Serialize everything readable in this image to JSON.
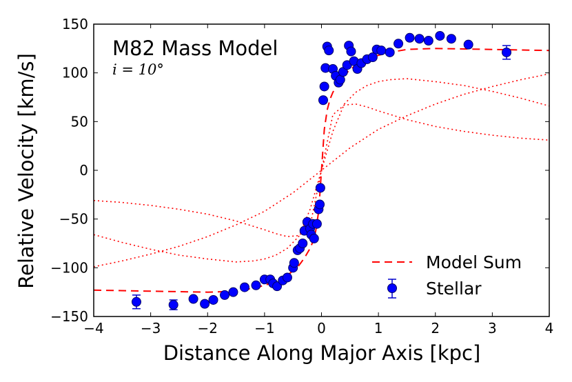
{
  "chart_data": {
    "type": "scatter",
    "title": "M82 Mass Model",
    "annotation": "i = 10°",
    "xlabel": "Distance Along Major Axis [kpc]",
    "ylabel": "Relative Velocity [km/s]",
    "xlim": [
      -4,
      4
    ],
    "ylim": [
      -150,
      150
    ],
    "xticks": [
      -4,
      -3,
      -2,
      -1,
      0,
      1,
      2,
      3,
      4
    ],
    "yticks": [
      -150,
      -100,
      -50,
      0,
      50,
      100,
      150
    ],
    "xtick_labels": [
      "−4",
      "−3",
      "−2",
      "−1",
      "0",
      "1",
      "2",
      "3",
      "4"
    ],
    "ytick_labels": [
      "−150",
      "−100",
      "−50",
      "0",
      "50",
      "100",
      "150"
    ],
    "legend": {
      "location": "lower-right",
      "entries": [
        {
          "label": "Model Sum",
          "style": "dashed-line",
          "color": "#ff0000"
        },
        {
          "label": "Stellar",
          "style": "marker-errorbar",
          "color": "#0000ff"
        }
      ]
    },
    "colors": {
      "stellar": "#0000ff",
      "model": "#ff0000",
      "errorbar": "#0000cc"
    },
    "series": [
      {
        "name": "Stellar",
        "kind": "points",
        "points": [
          {
            "x": -3.25,
            "y": -135,
            "err": 7
          },
          {
            "x": -2.6,
            "y": -138,
            "err": 5
          },
          {
            "x": -2.25,
            "y": -132
          },
          {
            "x": -2.05,
            "y": -137
          },
          {
            "x": -1.9,
            "y": -133
          },
          {
            "x": -1.7,
            "y": -128
          },
          {
            "x": -1.55,
            "y": -125
          },
          {
            "x": -1.35,
            "y": -120
          },
          {
            "x": -1.15,
            "y": -118
          },
          {
            "x": -1.0,
            "y": -112
          },
          {
            "x": -0.9,
            "y": -112
          },
          {
            "x": -0.85,
            "y": -116
          },
          {
            "x": -0.78,
            "y": -119
          },
          {
            "x": -0.68,
            "y": -113
          },
          {
            "x": -0.6,
            "y": -110
          },
          {
            "x": -0.5,
            "y": -100
          },
          {
            "x": -0.48,
            "y": -95
          },
          {
            "x": -0.42,
            "y": -82
          },
          {
            "x": -0.38,
            "y": -80
          },
          {
            "x": -0.33,
            "y": -75
          },
          {
            "x": -0.3,
            "y": -62
          },
          {
            "x": -0.25,
            "y": -53
          },
          {
            "x": -0.2,
            "y": -60
          },
          {
            "x": -0.15,
            "y": -55
          },
          {
            "x": -0.18,
            "y": -66
          },
          {
            "x": -0.13,
            "y": -70
          },
          {
            "x": -0.08,
            "y": -55
          },
          {
            "x": -0.05,
            "y": -40
          },
          {
            "x": -0.03,
            "y": -35
          },
          {
            "x": -0.02,
            "y": -18
          },
          {
            "x": 0.03,
            "y": 72
          },
          {
            "x": 0.05,
            "y": 86
          },
          {
            "x": 0.07,
            "y": 105
          },
          {
            "x": 0.1,
            "y": 127
          },
          {
            "x": 0.13,
            "y": 123
          },
          {
            "x": 0.2,
            "y": 104
          },
          {
            "x": 0.25,
            "y": 97
          },
          {
            "x": 0.3,
            "y": 90
          },
          {
            "x": 0.33,
            "y": 93
          },
          {
            "x": 0.38,
            "y": 101
          },
          {
            "x": 0.45,
            "y": 108
          },
          {
            "x": 0.48,
            "y": 128
          },
          {
            "x": 0.52,
            "y": 122
          },
          {
            "x": 0.57,
            "y": 112
          },
          {
            "x": 0.63,
            "y": 104
          },
          {
            "x": 0.7,
            "y": 110
          },
          {
            "x": 0.8,
            "y": 114
          },
          {
            "x": 0.9,
            "y": 116
          },
          {
            "x": 0.97,
            "y": 124
          },
          {
            "x": 1.05,
            "y": 123
          },
          {
            "x": 1.2,
            "y": 121
          },
          {
            "x": 1.35,
            "y": 130
          },
          {
            "x": 1.55,
            "y": 136
          },
          {
            "x": 1.72,
            "y": 135
          },
          {
            "x": 1.88,
            "y": 133
          },
          {
            "x": 2.08,
            "y": 138
          },
          {
            "x": 2.28,
            "y": 135
          },
          {
            "x": 2.58,
            "y": 129
          },
          {
            "x": 3.25,
            "y": 121,
            "err": 7
          }
        ]
      },
      {
        "name": "Model Sum",
        "kind": "dashed",
        "x": [
          -4,
          -3.5,
          -3,
          -2.5,
          -2,
          -1.5,
          -1.2,
          -1,
          -0.8,
          -0.6,
          -0.4,
          -0.3,
          -0.2,
          -0.15,
          -0.1,
          -0.05,
          0,
          0.05,
          0.1,
          0.15,
          0.2,
          0.3,
          0.4,
          0.6,
          0.8,
          1,
          1.2,
          1.5,
          2,
          2.5,
          3,
          3.5,
          4
        ],
        "y": [
          -123,
          -123.5,
          -124,
          -124.5,
          -125,
          -124,
          -121,
          -118,
          -114,
          -108,
          -98,
          -90,
          -80,
          -73,
          -62,
          -42,
          0,
          42,
          62,
          73,
          80,
          90,
          98,
          108,
          114,
          118,
          121,
          124,
          125,
          124.5,
          124,
          123.5,
          123
        ]
      },
      {
        "name": "Component A",
        "kind": "dotted",
        "x": [
          -4,
          -3.5,
          -3,
          -2.5,
          -2,
          -1.5,
          -1,
          -0.8,
          -0.6,
          -0.4,
          -0.2,
          0,
          0.2,
          0.4,
          0.6,
          0.8,
          1,
          1.5,
          2,
          2.5,
          3,
          3.5,
          4
        ],
        "y": [
          -31,
          -33,
          -36,
          -40,
          -45,
          -52,
          -61,
          -65,
          -68,
          -67,
          -57,
          0,
          57,
          67,
          68,
          65,
          61,
          52,
          45,
          40,
          36,
          33,
          31
        ]
      },
      {
        "name": "Component B",
        "kind": "dotted",
        "x": [
          -4,
          -3.5,
          -3,
          -2.5,
          -2,
          -1.5,
          -1.2,
          -1,
          -0.8,
          -0.6,
          -0.4,
          -0.2,
          0,
          0.2,
          0.4,
          0.6,
          0.8,
          1,
          1.2,
          1.5,
          2,
          2.5,
          3,
          3.5,
          4
        ],
        "y": [
          -66,
          -74,
          -81,
          -87,
          -91,
          -94,
          -93,
          -91,
          -87,
          -80,
          -68,
          -40,
          0,
          40,
          68,
          80,
          87,
          91,
          93,
          94,
          91,
          87,
          81,
          74,
          66
        ]
      },
      {
        "name": "Component C",
        "kind": "dotted",
        "x": [
          -4,
          -3.5,
          -3,
          -2.5,
          -2,
          -1.5,
          -1,
          -0.5,
          0,
          0.5,
          1,
          1.5,
          2,
          2.5,
          3,
          3.5,
          4
        ],
        "y": [
          -99,
          -93,
          -86,
          -78,
          -68,
          -56,
          -42,
          -23,
          0,
          23,
          42,
          56,
          68,
          78,
          86,
          93,
          99
        ]
      }
    ]
  }
}
